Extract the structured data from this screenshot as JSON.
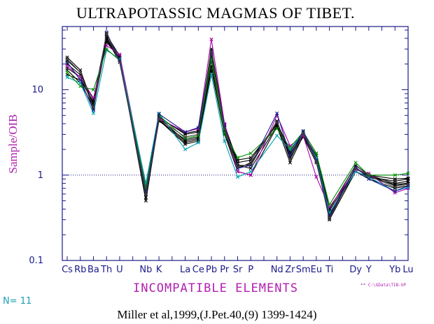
{
  "chart_data": {
    "type": "line",
    "title": "ULTRAPOTASSIC MAGMAS OF TIBET.",
    "xlabel": "INCOMPATIBLE ELEMENTS",
    "ylabel": "Sample/OIB",
    "yscale": "log",
    "ylim": [
      0.1,
      55
    ],
    "reference_line": 1,
    "yticks": [
      {
        "value": 0.1,
        "label": "0.1"
      },
      {
        "value": 1,
        "label": "1"
      },
      {
        "value": 10,
        "label": "10"
      }
    ],
    "categories": [
      "Cs",
      "Rb",
      "Ba",
      "Th",
      "U",
      "",
      "Nb",
      "K",
      "",
      "La",
      "Ce",
      "Pb",
      "Pr",
      "Sr",
      "P",
      "",
      "Nd",
      "Zr",
      "Sm",
      "Eu",
      "Ti",
      "",
      "Dy",
      "Y",
      "",
      "Yb",
      "Lu"
    ],
    "series": [
      {
        "color": "#000000",
        "values": [
          24,
          17,
          6.5,
          45,
          23,
          null,
          0.5,
          4.6,
          null,
          3.1,
          3.3,
          25,
          3.8,
          1.3,
          1.3,
          null,
          4.3,
          1.6,
          3.0,
          1.5,
          0.32,
          null,
          1.2,
          1.0,
          null,
          0.75,
          0.8
        ]
      },
      {
        "color": "#000000",
        "values": [
          22,
          16,
          6.0,
          42,
          22,
          null,
          0.55,
          4.5,
          null,
          2.4,
          2.6,
          17,
          3.0,
          1.1,
          1.0,
          null,
          3.7,
          1.4,
          2.9,
          1.5,
          0.3,
          null,
          1.1,
          0.9,
          null,
          0.7,
          0.75
        ]
      },
      {
        "color": "#000000",
        "values": [
          18,
          14,
          6.8,
          40,
          21,
          null,
          0.65,
          4.4,
          null,
          2.3,
          2.5,
          22,
          3.2,
          1.2,
          1.4,
          null,
          4.0,
          1.7,
          3.1,
          1.6,
          0.35,
          null,
          1.2,
          0.95,
          null,
          0.85,
          0.9
        ]
      },
      {
        "color": "#000000",
        "values": [
          15,
          13,
          7.2,
          38,
          22,
          null,
          0.7,
          4.7,
          null,
          2.5,
          2.7,
          26,
          3.6,
          1.5,
          1.6,
          null,
          3.9,
          1.8,
          3.0,
          1.7,
          0.38,
          null,
          1.2,
          1.0,
          null,
          0.8,
          0.85
        ]
      },
      {
        "color": "#000000",
        "values": [
          17,
          12,
          6.3,
          36,
          24,
          null,
          0.6,
          4.3,
          null,
          2.6,
          2.8,
          19,
          3.4,
          1.3,
          1.2,
          null,
          3.8,
          1.6,
          2.8,
          1.4,
          0.34,
          null,
          1.1,
          0.95,
          null,
          0.78,
          0.8
        ]
      },
      {
        "color": "#000000",
        "values": [
          20,
          15,
          7.6,
          44,
          25,
          null,
          0.72,
          4.8,
          null,
          3.0,
          3.2,
          30,
          3.9,
          1.4,
          1.5,
          null,
          4.1,
          1.9,
          3.2,
          1.8,
          0.4,
          null,
          1.3,
          1.0,
          null,
          0.9,
          0.92
        ]
      },
      {
        "color": "#b000b0",
        "values": [
          19,
          14,
          8.0,
          33,
          26,
          null,
          0.75,
          4.6,
          null,
          3.2,
          3.5,
          39,
          4.0,
          1.1,
          1.0,
          null,
          5.0,
          2.2,
          2.9,
          0.95,
          0.42,
          null,
          1.15,
          1.05,
          null,
          0.62,
          0.7
        ]
      },
      {
        "color": "#00a0b0",
        "values": [
          14,
          12,
          5.3,
          29,
          23,
          null,
          0.8,
          5.3,
          null,
          2.0,
          2.4,
          15,
          2.5,
          0.95,
          1.1,
          null,
          2.9,
          2.0,
          3.1,
          1.6,
          0.36,
          null,
          1.1,
          0.95,
          null,
          0.65,
          0.72
        ]
      },
      {
        "color": "#009000",
        "values": [
          16,
          11,
          10,
          30,
          22,
          null,
          0.7,
          5.0,
          null,
          2.7,
          2.9,
          23,
          3.1,
          1.6,
          1.8,
          null,
          3.5,
          2.1,
          3.2,
          1.8,
          0.45,
          null,
          1.4,
          1.0,
          null,
          1.0,
          1.05
        ]
      },
      {
        "color": "#1a1a8a",
        "values": [
          21,
          13,
          5.8,
          47,
          22,
          null,
          0.62,
          5.2,
          null,
          3.2,
          3.6,
          27,
          3.7,
          1.2,
          1.3,
          null,
          5.3,
          1.7,
          3.3,
          1.5,
          0.33,
          null,
          1.25,
          0.9,
          null,
          0.65,
          0.75
        ]
      },
      {
        "color": "#404040",
        "values": [
          23,
          16,
          6.2,
          46,
          21,
          null,
          0.58,
          4.5,
          null,
          2.8,
          3.0,
          28,
          3.5,
          1.25,
          1.35,
          null,
          4.2,
          1.5,
          3.1,
          1.45,
          0.31,
          null,
          1.2,
          0.98,
          null,
          0.72,
          0.78
        ]
      }
    ]
  },
  "n_label": "N= 11",
  "citation": "Miller et al,1999,(J.Pet.40,(9) 1399-1424)",
  "file_path": "** C:\\GData\\TIB-UP",
  "colors": {
    "axis": "#1a1a8a",
    "label": "#b020b0",
    "n_label": "#1aa0b0"
  }
}
